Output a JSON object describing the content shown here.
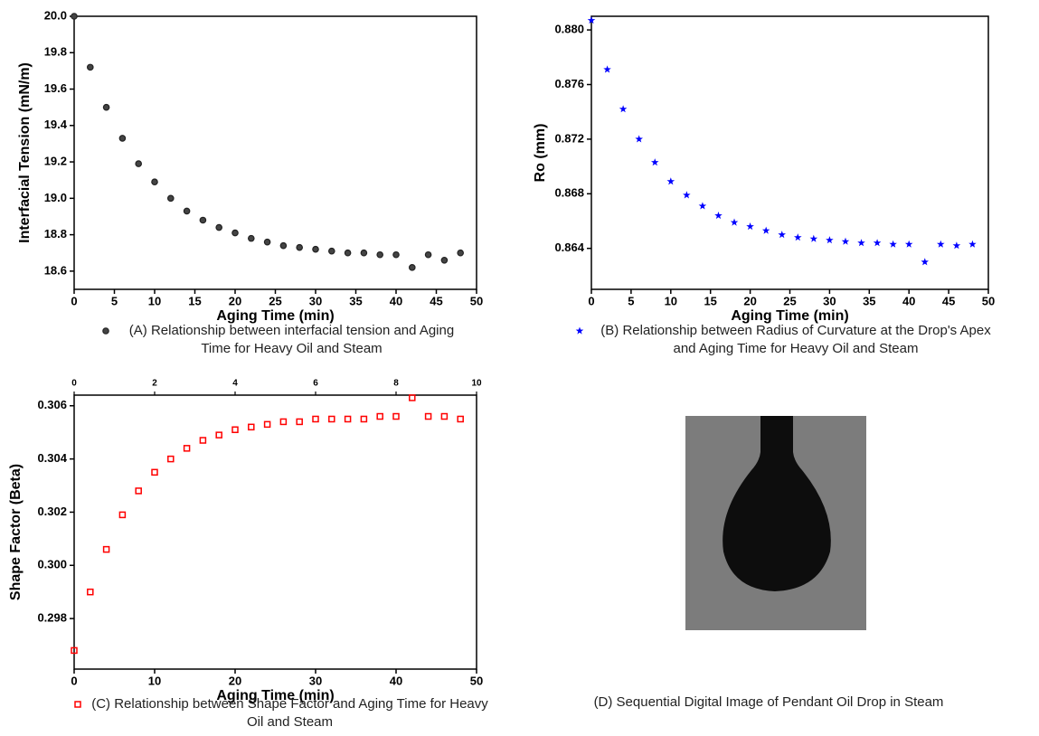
{
  "chart_data": [
    {
      "type": "scatter",
      "x_label": "Aging Time (min)",
      "y_label": "Interfacial Tension (mN/m)",
      "xlim": [
        0,
        50
      ],
      "ylim": [
        18.5,
        20.0
      ],
      "xticks": [
        0,
        5,
        10,
        15,
        20,
        25,
        30,
        35,
        40,
        45,
        50
      ],
      "yticks": [
        18.6,
        18.8,
        {
          "value": 19,
          "label": "19.0"
        },
        19.2,
        19.4,
        19.6,
        19.8,
        {
          "value": 20,
          "label": "20.0"
        }
      ],
      "x": [
        0,
        2,
        4,
        6,
        8,
        10,
        12,
        14,
        16,
        18,
        20,
        22,
        24,
        26,
        28,
        30,
        32,
        34,
        36,
        38,
        40,
        42,
        44,
        46,
        48
      ],
      "series": [
        {
          "name": "(A) Relationship between interfacial tension and Aging Time for Heavy Oil and Steam",
          "color": "#222222",
          "marker": "circle",
          "values": [
            20.0,
            19.72,
            19.5,
            19.33,
            19.19,
            19.09,
            19.0,
            18.93,
            18.88,
            18.84,
            18.81,
            18.78,
            18.76,
            18.74,
            18.73,
            18.72,
            18.71,
            18.7,
            18.7,
            18.69,
            18.69,
            18.62,
            18.69,
            18.66,
            18.7
          ]
        }
      ]
    },
    {
      "type": "scatter",
      "x_label": "Aging Time (min)",
      "y_label": "Ro (mm)",
      "xlim": [
        0,
        50
      ],
      "ylim": [
        0.861,
        0.881
      ],
      "xticks": [
        0,
        5,
        10,
        15,
        20,
        25,
        30,
        35,
        40,
        45,
        50
      ],
      "yticks": [
        0.864,
        0.868,
        0.872,
        0.876,
        {
          "value": 0.88,
          "label": "0.880"
        }
      ],
      "x": [
        0,
        2,
        4,
        6,
        8,
        10,
        12,
        14,
        16,
        18,
        20,
        22,
        24,
        26,
        28,
        30,
        32,
        34,
        36,
        38,
        40,
        42,
        44,
        46,
        48
      ],
      "series": [
        {
          "name": "(B) Relationship between Radius of Curvature at the Drop's Apex and Aging Time for Heavy Oil and Steam",
          "color": "#0000ff",
          "marker": "star",
          "values": [
            0.8807,
            0.8771,
            0.8742,
            0.872,
            0.8703,
            0.8689,
            0.8679,
            0.8671,
            0.8664,
            0.8659,
            0.8656,
            0.8653,
            0.865,
            0.8648,
            0.8647,
            0.8646,
            0.8645,
            0.8644,
            0.8644,
            0.8643,
            0.8643,
            0.863,
            0.8643,
            0.8642,
            0.8643
          ]
        }
      ]
    },
    {
      "type": "scatter",
      "x_label": "Aging Time (min)",
      "y_label": "Shape Factor (Beta)",
      "xlim": [
        0,
        50
      ],
      "ylim": [
        0.2961,
        0.3064
      ],
      "xticks": [
        0,
        10,
        20,
        30,
        40,
        50
      ],
      "x2lim": [
        0,
        10
      ],
      "x2ticks": [
        0,
        2,
        4,
        6,
        8,
        10
      ],
      "yticks": [
        0.298,
        {
          "value": 0.3,
          "label": "0.300"
        },
        0.302,
        0.304,
        0.306
      ],
      "x": [
        0,
        2,
        4,
        6,
        8,
        10,
        12,
        14,
        16,
        18,
        20,
        22,
        24,
        26,
        28,
        30,
        32,
        34,
        36,
        38,
        40,
        42,
        44,
        46,
        48
      ],
      "series": [
        {
          "name": "(C) Relationship between Shape Factor and Aging Time for Heavy Oil and Steam",
          "color": "#ff0000",
          "marker": "square",
          "values": [
            0.2968,
            0.299,
            0.3006,
            0.3019,
            0.3028,
            0.3035,
            0.304,
            0.3044,
            0.3047,
            0.3049,
            0.3051,
            0.3052,
            0.3053,
            0.3054,
            0.3054,
            0.3055,
            0.3055,
            0.3055,
            0.3055,
            0.3056,
            0.3056,
            0.3063,
            0.3056,
            0.3056,
            0.3055
          ]
        }
      ]
    }
  ],
  "image_panel": {
    "caption": "(D) Sequential Digital Image of Pendant Oil Drop in Steam"
  }
}
